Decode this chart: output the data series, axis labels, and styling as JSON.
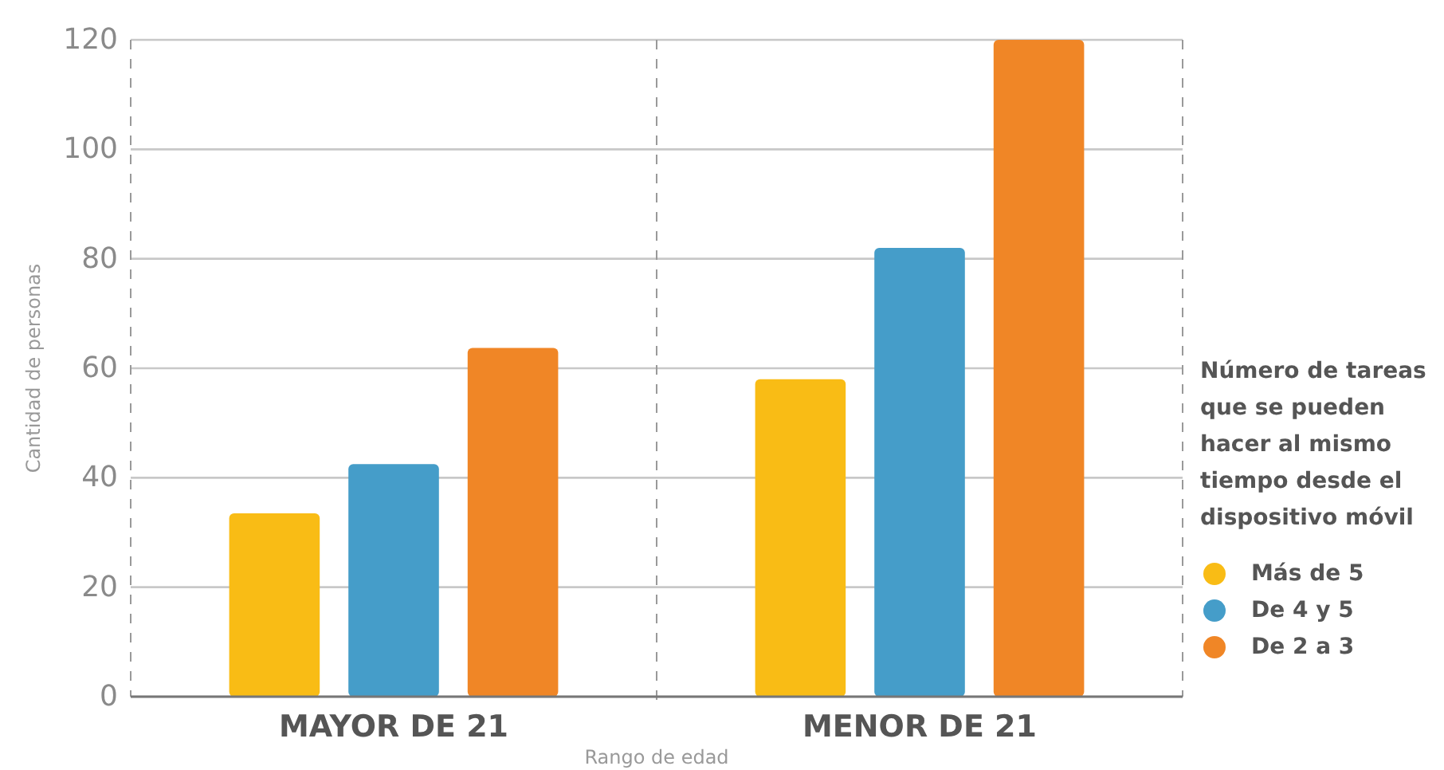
{
  "chart_data": {
    "type": "bar",
    "ylabel": "Cantidad de personas",
    "xlabel": "Rango de edad",
    "legend_title": "Número de tareas que se pueden hacer al mismo tiempo desde el dispositivo móvil",
    "categories": [
      "MAYOR DE 21",
      "MENOR DE 21"
    ],
    "series": [
      {
        "name": "Más de 5",
        "color": "#f9bc15",
        "values": [
          33.5,
          58
        ]
      },
      {
        "name": "De 4 y 5",
        "color": "#459dc9",
        "values": [
          42.5,
          82
        ]
      },
      {
        "name": "De 2 a 3",
        "color": "#f08626",
        "values": [
          63.7,
          120
        ]
      }
    ],
    "ylim": [
      0,
      120
    ],
    "yticks": [
      0,
      20,
      40,
      60,
      80,
      100,
      120
    ],
    "grid": true,
    "legend": "right"
  }
}
